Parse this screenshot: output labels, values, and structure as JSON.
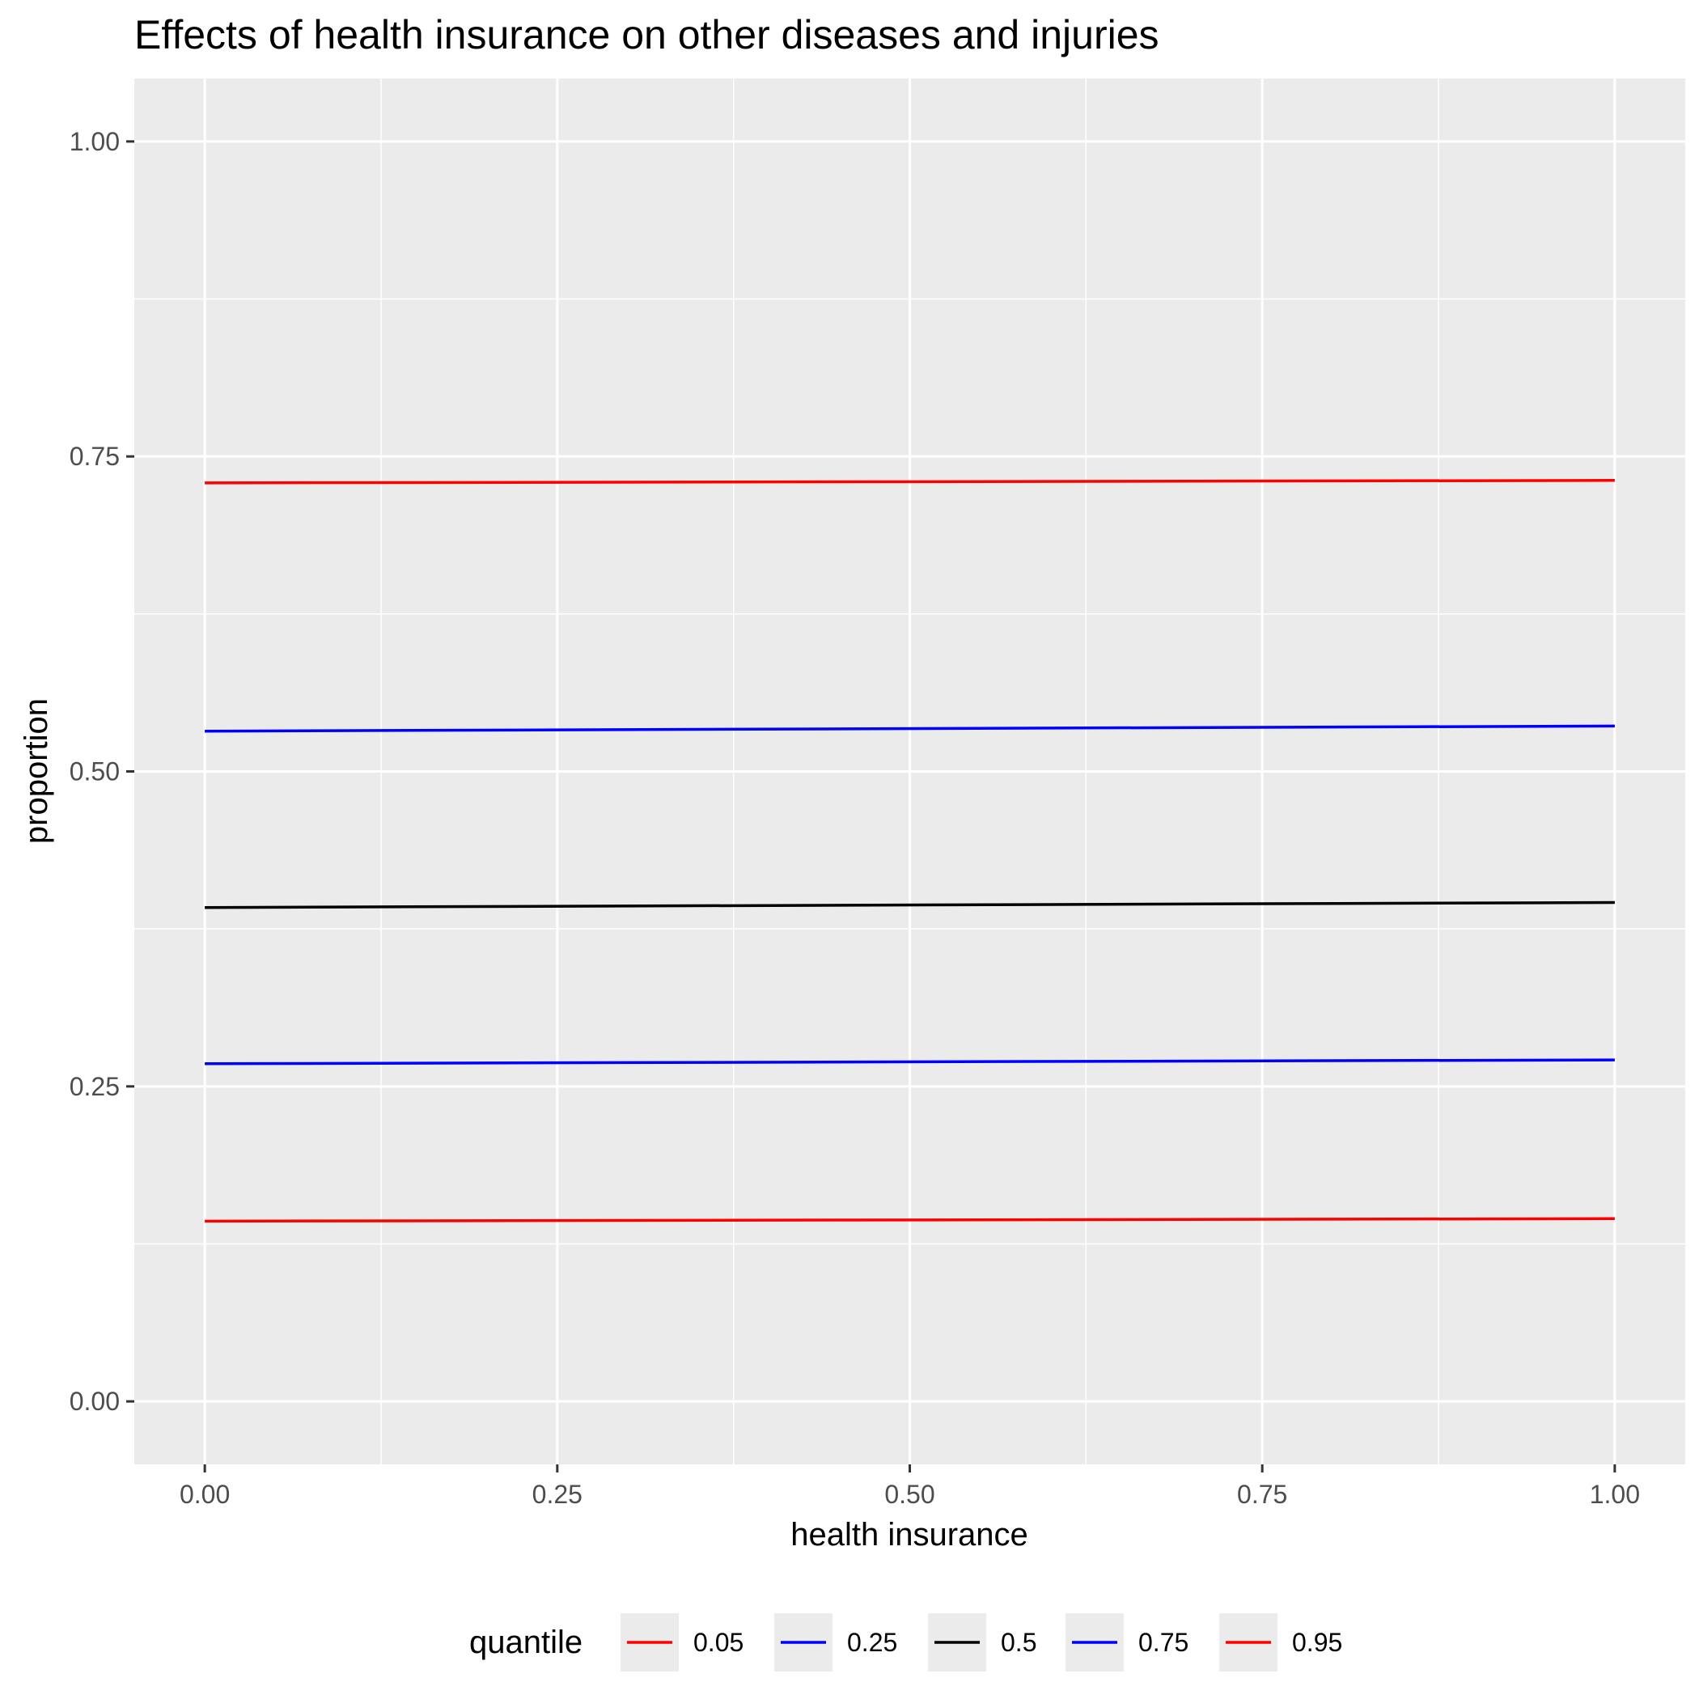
{
  "chart_data": {
    "type": "line",
    "title": "Effects of health insurance on other diseases and injuries",
    "xlabel": "health insurance",
    "ylabel": "proportion",
    "xlim": [
      -0.05,
      1.05
    ],
    "ylim": [
      -0.05,
      1.05
    ],
    "x_ticks": [
      "0.00",
      "0.25",
      "0.50",
      "0.75",
      "1.00"
    ],
    "y_ticks": [
      "0.00",
      "0.25",
      "0.50",
      "0.75",
      "1.00"
    ],
    "grid": true,
    "legend": {
      "title": "quantile",
      "position": "bottom"
    },
    "series": [
      {
        "name": "0.05",
        "color": "#ff0000",
        "x": [
          0,
          1
        ],
        "y": [
          0.143,
          0.145
        ]
      },
      {
        "name": "0.25",
        "color": "#0000ff",
        "x": [
          0,
          1
        ],
        "y": [
          0.268,
          0.271
        ]
      },
      {
        "name": "0.5",
        "color": "#000000",
        "x": [
          0,
          1
        ],
        "y": [
          0.392,
          0.396
        ]
      },
      {
        "name": "0.75",
        "color": "#0000ff",
        "x": [
          0,
          1
        ],
        "y": [
          0.532,
          0.536
        ]
      },
      {
        "name": "0.95",
        "color": "#ff0000",
        "x": [
          0,
          1
        ],
        "y": [
          0.729,
          0.731
        ]
      }
    ]
  }
}
